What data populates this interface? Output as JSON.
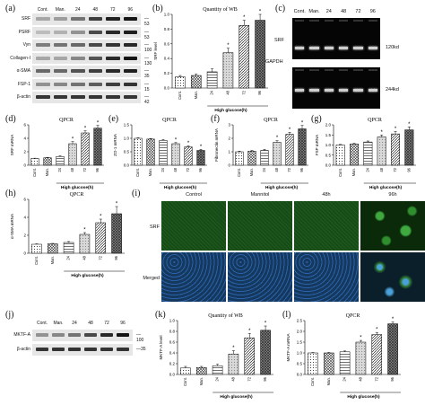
{
  "panel_letters": {
    "a": "(a)",
    "b": "(b)",
    "c": "(c)",
    "d": "(d)",
    "e": "(e)",
    "f": "(f)",
    "g": "(g)",
    "h": "(h)",
    "i": "(i)",
    "j": "(j)",
    "k": "(k)",
    "l": "(l)"
  },
  "blot_a": {
    "lanes": [
      "Cont.",
      "Man.",
      "24",
      "48",
      "72",
      "96"
    ],
    "rows": [
      {
        "label": "SRF",
        "kd": "53"
      },
      {
        "label": "PSRF",
        "kd": "53"
      },
      {
        "label": "Vyn",
        "kd": "100"
      },
      {
        "label": "Collagen-I",
        "kd": "130"
      },
      {
        "label": "α-SMA",
        "kd": "35"
      },
      {
        "label": "FSP-1",
        "kd": "15"
      },
      {
        "label": "β-actin",
        "kd": "42"
      }
    ]
  },
  "gel_c": {
    "lanes": [
      "Cont.",
      "Man.",
      "24",
      "48",
      "72",
      "96"
    ],
    "labels": [
      "SRF",
      "GAPDH"
    ],
    "sizes": [
      "120kd",
      "244kd"
    ]
  },
  "blot_j": {
    "lanes": [
      "Cont.",
      "Man.",
      "24",
      "48",
      "72",
      "96"
    ],
    "rows": [
      {
        "label": "MKTF-A",
        "kd": "100"
      },
      {
        "label": "β-actin",
        "kd": "35"
      }
    ]
  },
  "micro_i": {
    "columns": [
      "Control",
      "Mannitol",
      "48h",
      "96h"
    ],
    "rows": [
      "SRF",
      "Merged"
    ]
  },
  "chart_data": [
    {
      "id": "b",
      "type": "bar",
      "title": "Quantity of WB",
      "ylabel": "SRF level",
      "xlabel": "High glucose(h)",
      "categories": [
        "Cont.",
        "Man.",
        "24",
        "48",
        "72",
        "96"
      ],
      "values": [
        0.15,
        0.17,
        0.22,
        0.48,
        0.85,
        0.92
      ],
      "errors": [
        0.02,
        0.02,
        0.04,
        0.06,
        0.07,
        0.08
      ],
      "star": [
        false,
        false,
        false,
        true,
        true,
        true
      ],
      "ylim": [
        0,
        1.0
      ],
      "yticks": [
        "0.0",
        "0.2",
        "0.4",
        "0.6",
        "0.8",
        "1.0"
      ]
    },
    {
      "id": "d",
      "type": "bar",
      "title": "QPCR",
      "ylabel": "SRF mRNA",
      "xlabel": "High glucose(h)",
      "categories": [
        "Cont.",
        "Man.",
        "24",
        "48",
        "72",
        "96"
      ],
      "values": [
        1.0,
        1.1,
        1.3,
        3.2,
        4.8,
        5.5
      ],
      "errors": [
        0.05,
        0.05,
        0.1,
        0.3,
        0.3,
        0.4
      ],
      "star": [
        false,
        false,
        false,
        true,
        true,
        true
      ],
      "ylim": [
        0,
        6
      ],
      "yticks": [
        "0",
        "2",
        "4",
        "6"
      ]
    },
    {
      "id": "e",
      "type": "bar",
      "title": "QPCR",
      "ylabel": "ZO-1 mRNA",
      "xlabel": "High glucose(h)",
      "categories": [
        "Cont.",
        "Man.",
        "24",
        "48",
        "72",
        "96"
      ],
      "values": [
        1.0,
        0.97,
        0.92,
        0.8,
        0.68,
        0.55
      ],
      "errors": [
        0.02,
        0.02,
        0.03,
        0.04,
        0.04,
        0.04
      ],
      "star": [
        false,
        false,
        false,
        true,
        true,
        true
      ],
      "ylim": [
        0,
        1.5
      ],
      "yticks": [
        "0.0",
        "0.5",
        "1.0",
        "1.5"
      ]
    },
    {
      "id": "f",
      "type": "bar",
      "title": "QPCR",
      "ylabel": "Fibronectin mRNA",
      "xlabel": "High glucose(h)",
      "categories": [
        "Cont.",
        "Man.",
        "24",
        "48",
        "72",
        "96"
      ],
      "values": [
        1.0,
        1.05,
        1.1,
        1.7,
        2.3,
        2.7
      ],
      "errors": [
        0.05,
        0.05,
        0.08,
        0.12,
        0.15,
        0.25
      ],
      "star": [
        false,
        false,
        false,
        true,
        true,
        true
      ],
      "ylim": [
        0,
        3
      ],
      "yticks": [
        "0",
        "1",
        "2",
        "3"
      ]
    },
    {
      "id": "g",
      "type": "bar",
      "title": "QPCR",
      "ylabel": "FSP mRNA",
      "xlabel": "High glucose(h)",
      "categories": [
        "Cont.",
        "Man.",
        "24",
        "48",
        "72",
        "96"
      ],
      "values": [
        1.0,
        1.05,
        1.15,
        1.4,
        1.55,
        1.75
      ],
      "errors": [
        0.03,
        0.03,
        0.05,
        0.1,
        0.12,
        0.15
      ],
      "star": [
        false,
        false,
        false,
        true,
        true,
        true
      ],
      "ylim": [
        0,
        2.0
      ],
      "yticks": [
        "0.0",
        "0.5",
        "1.0",
        "1.5",
        "2.0"
      ]
    },
    {
      "id": "h",
      "type": "bar",
      "title": "QPCR",
      "ylabel": "α-SMA mRNA",
      "xlabel": "High glucose(h)",
      "categories": [
        "Cont.",
        "Man.",
        "24",
        "48",
        "72",
        "96"
      ],
      "values": [
        1.0,
        1.05,
        1.2,
        2.1,
        3.4,
        4.4
      ],
      "errors": [
        0.05,
        0.05,
        0.1,
        0.2,
        0.4,
        0.8
      ],
      "star": [
        false,
        false,
        false,
        true,
        true,
        true
      ],
      "ylim": [
        0,
        6
      ],
      "yticks": [
        "0",
        "2",
        "4",
        "6"
      ]
    },
    {
      "id": "k",
      "type": "bar",
      "title": "Quantity of WB",
      "ylabel": "MKTF-A level",
      "xlabel": "High glucose(h)",
      "categories": [
        "Cont.",
        "Man.",
        "24",
        "48",
        "72",
        "96"
      ],
      "values": [
        0.12,
        0.13,
        0.16,
        0.38,
        0.68,
        0.82
      ],
      "errors": [
        0.03,
        0.02,
        0.03,
        0.06,
        0.08,
        0.08
      ],
      "star": [
        false,
        false,
        false,
        true,
        true,
        true
      ],
      "ylim": [
        0,
        1.0
      ],
      "yticks": [
        "0.0",
        "0.2",
        "0.4",
        "0.6",
        "0.8",
        "1.0"
      ]
    },
    {
      "id": "l",
      "type": "bar",
      "title": "QPCR",
      "ylabel": "MKTF-A mRNA",
      "xlabel": "High glucose(h)",
      "categories": [
        "Cont.",
        "Man.",
        "24",
        "48",
        "72",
        "96"
      ],
      "values": [
        1.0,
        1.0,
        1.05,
        1.5,
        1.85,
        2.35
      ],
      "errors": [
        0.02,
        0.02,
        0.04,
        0.08,
        0.1,
        0.08
      ],
      "star": [
        false,
        false,
        false,
        true,
        true,
        true
      ],
      "ylim": [
        0,
        2.5
      ],
      "yticks": [
        "0.0",
        "0.5",
        "1.0",
        "1.5",
        "2.0",
        "2.5"
      ]
    }
  ]
}
